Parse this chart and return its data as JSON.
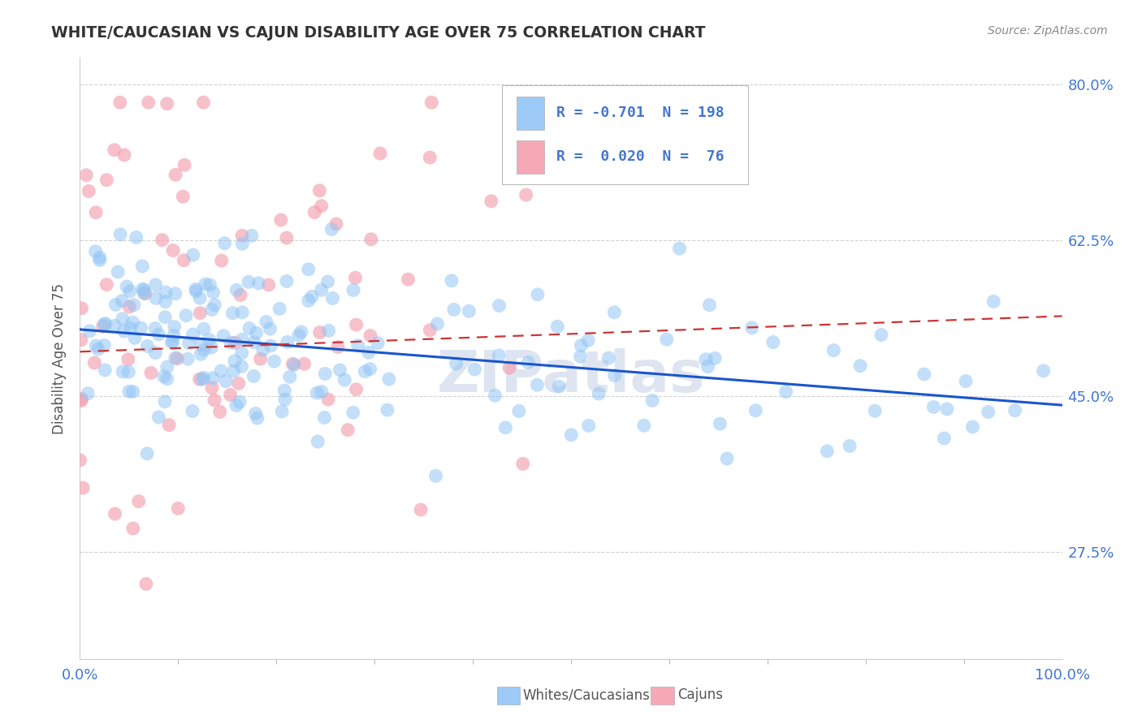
{
  "title": "WHITE/CAUCASIAN VS CAJUN DISABILITY AGE OVER 75 CORRELATION CHART",
  "source_text": "Source: ZipAtlas.com",
  "ylabel": "Disability Age Over 75",
  "x_min": 0.0,
  "x_max": 1.0,
  "y_min": 0.155,
  "y_max": 0.83,
  "y_ticks": [
    0.275,
    0.45,
    0.625,
    0.8
  ],
  "y_tick_labels": [
    "27.5%",
    "45.0%",
    "62.5%",
    "80.0%"
  ],
  "x_tick_labels": [
    "0.0%",
    "100.0%"
  ],
  "legend_r_white": "-0.701",
  "legend_n_white": "198",
  "legend_r_cajun": "0.020",
  "legend_n_cajun": " 76",
  "white_color": "#92c5f5",
  "cajun_color": "#f4a0b0",
  "white_line_color": "#1a56cc",
  "cajun_line_color": "#cc3333",
  "background_color": "#ffffff",
  "watermark_text": "ZIPatlas",
  "watermark_color": "#c8d4e8",
  "grid_color": "#cccccc",
  "title_color": "#333333",
  "label_color": "#555555",
  "tick_label_color": "#4477cc",
  "source_color": "#888888",
  "white_intercept": 0.525,
  "white_slope": -0.085,
  "cajun_intercept": 0.5,
  "cajun_slope": 0.04,
  "seed": 42
}
